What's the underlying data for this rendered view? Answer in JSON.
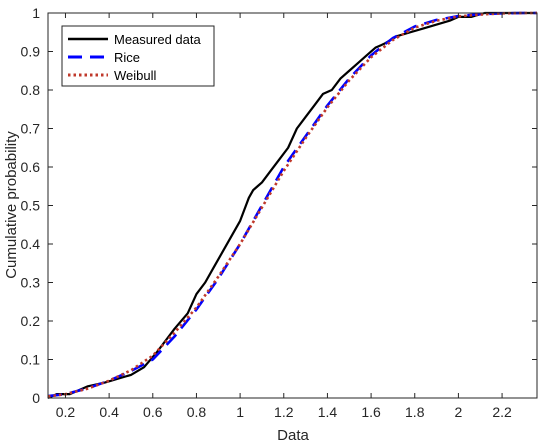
{
  "chart_data": {
    "type": "line",
    "xlabel": "Data",
    "ylabel": "Cumulative probability",
    "xlim": [
      0.12,
      2.36
    ],
    "ylim": [
      0,
      1
    ],
    "xticks": [
      "0.2",
      "0.4",
      "0.6",
      "0.8",
      "1",
      "1.2",
      "1.4",
      "1.6",
      "1.8",
      "2",
      "2.2"
    ],
    "yticks": [
      "0",
      "0.1",
      "0.2",
      "0.3",
      "0.4",
      "0.5",
      "0.6",
      "0.7",
      "0.8",
      "0.9",
      "1"
    ],
    "grid": false,
    "legend_position": "top-left",
    "series": [
      {
        "name": "Measured data",
        "color": "#000000",
        "style": "solid",
        "x": [
          0.12,
          0.16,
          0.22,
          0.3,
          0.38,
          0.44,
          0.5,
          0.56,
          0.62,
          0.66,
          0.7,
          0.76,
          0.8,
          0.84,
          0.88,
          0.92,
          0.96,
          1.0,
          1.02,
          1.04,
          1.06,
          1.08,
          1.1,
          1.14,
          1.18,
          1.22,
          1.26,
          1.3,
          1.34,
          1.38,
          1.42,
          1.46,
          1.5,
          1.54,
          1.58,
          1.62,
          1.66,
          1.72,
          1.78,
          1.84,
          1.9,
          1.96,
          2.0,
          2.06,
          2.12,
          2.2,
          2.28,
          2.36
        ],
        "y": [
          0.0,
          0.01,
          0.01,
          0.03,
          0.04,
          0.05,
          0.06,
          0.08,
          0.12,
          0.15,
          0.18,
          0.22,
          0.27,
          0.3,
          0.34,
          0.38,
          0.42,
          0.46,
          0.49,
          0.52,
          0.54,
          0.55,
          0.56,
          0.59,
          0.62,
          0.65,
          0.7,
          0.73,
          0.76,
          0.79,
          0.8,
          0.83,
          0.85,
          0.87,
          0.89,
          0.91,
          0.92,
          0.94,
          0.95,
          0.96,
          0.97,
          0.98,
          0.99,
          0.99,
          1.0,
          1.0,
          1.0,
          1.0
        ]
      },
      {
        "name": "Rice",
        "color": "#0000ff",
        "style": "dashed",
        "x": [
          0.12,
          0.2,
          0.3,
          0.4,
          0.5,
          0.6,
          0.7,
          0.8,
          0.9,
          1.0,
          1.1,
          1.2,
          1.3,
          1.4,
          1.5,
          1.6,
          1.7,
          1.8,
          1.9,
          2.0,
          2.1,
          2.2,
          2.3,
          2.36
        ],
        "y": [
          0.005,
          0.01,
          0.025,
          0.045,
          0.07,
          0.1,
          0.16,
          0.23,
          0.31,
          0.4,
          0.5,
          0.6,
          0.68,
          0.76,
          0.83,
          0.89,
          0.935,
          0.965,
          0.982,
          0.992,
          0.997,
          0.999,
          1.0,
          1.0
        ]
      },
      {
        "name": "Weibull",
        "color": "#c0392b",
        "style": "dotted",
        "x": [
          0.12,
          0.2,
          0.3,
          0.4,
          0.5,
          0.6,
          0.7,
          0.8,
          0.9,
          1.0,
          1.1,
          1.2,
          1.3,
          1.4,
          1.5,
          1.6,
          1.7,
          1.8,
          1.9,
          2.0,
          2.1,
          2.2,
          2.3,
          2.36
        ],
        "y": [
          0.004,
          0.01,
          0.024,
          0.045,
          0.072,
          0.11,
          0.17,
          0.235,
          0.315,
          0.4,
          0.495,
          0.59,
          0.675,
          0.755,
          0.825,
          0.885,
          0.93,
          0.962,
          0.98,
          0.991,
          0.996,
          0.999,
          1.0,
          1.0
        ]
      }
    ]
  }
}
